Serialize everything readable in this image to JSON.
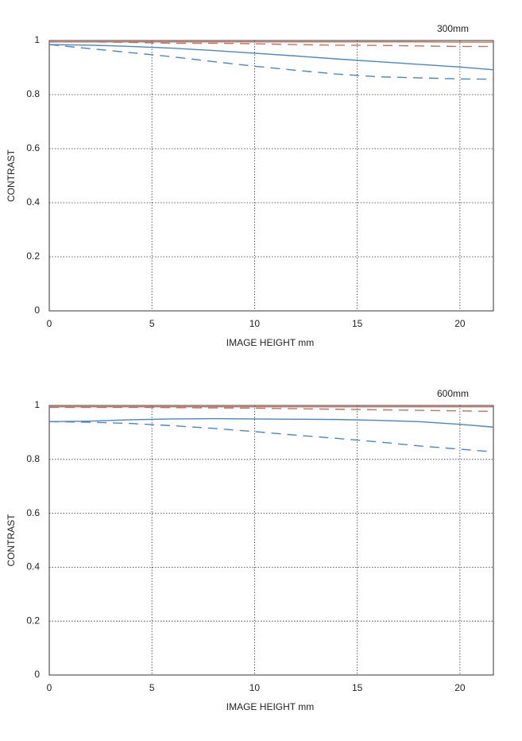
{
  "chart_data": [
    {
      "type": "line",
      "title": "300mm",
      "xlabel": "IMAGE HEIGHT   mm",
      "ylabel": "CONTRAST",
      "x": [
        0,
        2,
        4,
        6,
        8,
        10,
        12,
        14,
        16,
        18,
        20,
        21.6
      ],
      "series": [
        {
          "color": "#c8705e",
          "dash": false,
          "values": [
            0.995,
            0.995,
            0.995,
            0.995,
            0.995,
            0.995,
            0.995,
            0.995,
            0.995,
            0.995,
            0.994,
            0.994
          ]
        },
        {
          "color": "#c8705e",
          "dash": true,
          "values": [
            0.995,
            0.995,
            0.993,
            0.99,
            0.99,
            0.988,
            0.985,
            0.983,
            0.982,
            0.98,
            0.978,
            0.978
          ]
        },
        {
          "color": "#4a86c8",
          "dash": false,
          "values": [
            0.985,
            0.983,
            0.978,
            0.972,
            0.963,
            0.953,
            0.943,
            0.932,
            0.922,
            0.912,
            0.902,
            0.892
          ]
        },
        {
          "color": "#4a86c8",
          "dash": true,
          "values": [
            0.985,
            0.97,
            0.955,
            0.94,
            0.922,
            0.905,
            0.89,
            0.876,
            0.866,
            0.862,
            0.858,
            0.857
          ]
        }
      ],
      "xlim": [
        0,
        21.63
      ],
      "ylim": [
        0,
        1
      ],
      "xticks": [
        0,
        5,
        10,
        15,
        20
      ],
      "yticks": [
        0,
        0.2,
        0.4,
        0.6,
        0.8,
        1
      ],
      "grid": true
    },
    {
      "type": "line",
      "title": "600mm",
      "xlabel": "IMAGE HEIGHT   mm",
      "ylabel": "CONTRAST",
      "x": [
        0,
        2,
        4,
        6,
        8,
        10,
        12,
        14,
        16,
        18,
        20,
        21.6
      ],
      "series": [
        {
          "color": "#c8705e",
          "dash": false,
          "values": [
            0.995,
            0.995,
            0.995,
            0.995,
            0.995,
            0.995,
            0.995,
            0.995,
            0.995,
            0.995,
            0.995,
            0.995
          ]
        },
        {
          "color": "#c8705e",
          "dash": true,
          "values": [
            0.993,
            0.993,
            0.993,
            0.992,
            0.991,
            0.99,
            0.988,
            0.986,
            0.984,
            0.982,
            0.98,
            0.978
          ]
        },
        {
          "color": "#4a86c8",
          "dash": false,
          "values": [
            0.94,
            0.942,
            0.947,
            0.95,
            0.951,
            0.95,
            0.949,
            0.948,
            0.945,
            0.94,
            0.93,
            0.92
          ]
        },
        {
          "color": "#4a86c8",
          "dash": true,
          "values": [
            0.94,
            0.938,
            0.933,
            0.925,
            0.915,
            0.903,
            0.89,
            0.878,
            0.865,
            0.85,
            0.838,
            0.828
          ]
        }
      ],
      "xlim": [
        0,
        21.63
      ],
      "ylim": [
        0,
        1
      ],
      "xticks": [
        0,
        5,
        10,
        15,
        20
      ],
      "yticks": [
        0,
        0.2,
        0.4,
        0.6,
        0.8,
        1
      ],
      "grid": true
    }
  ]
}
